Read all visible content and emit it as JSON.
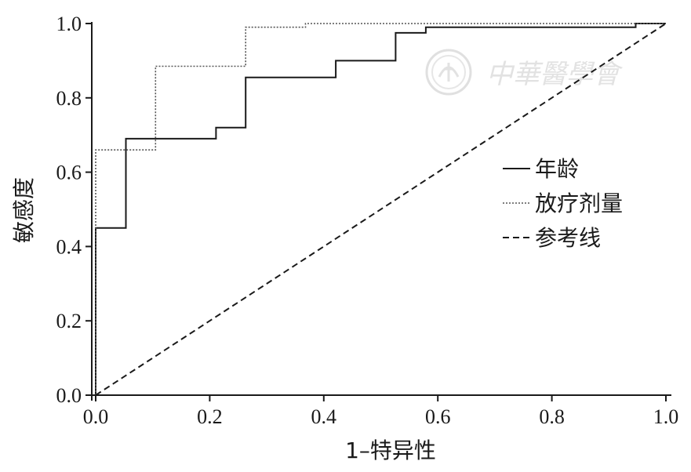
{
  "chart_data": {
    "type": "line",
    "title": "",
    "xlabel": "1–特异性",
    "ylabel": "敏感度",
    "xlim": [
      0,
      1
    ],
    "ylim": [
      0,
      1
    ],
    "x_ticks": [
      "0.0",
      "0.2",
      "0.4",
      "0.6",
      "0.8",
      "1.0"
    ],
    "y_ticks": [
      "0.0",
      "0.2",
      "0.4",
      "0.6",
      "0.8",
      "1.0"
    ],
    "grid": false,
    "legend_position": "right",
    "series": [
      {
        "name": "年龄",
        "style": "solid",
        "color": "#1a1a1a",
        "points": [
          [
            0,
            0
          ],
          [
            0,
            0.45
          ],
          [
            0.053,
            0.45
          ],
          [
            0.053,
            0.69
          ],
          [
            0.211,
            0.69
          ],
          [
            0.211,
            0.72
          ],
          [
            0.263,
            0.72
          ],
          [
            0.263,
            0.855
          ],
          [
            0.421,
            0.855
          ],
          [
            0.421,
            0.9
          ],
          [
            0.526,
            0.9
          ],
          [
            0.526,
            0.975
          ],
          [
            0.579,
            0.975
          ],
          [
            0.579,
            0.99
          ],
          [
            0.947,
            0.99
          ],
          [
            0.947,
            1.0
          ],
          [
            1.0,
            1.0
          ]
        ]
      },
      {
        "name": "放疗剂量",
        "style": "dotted",
        "color": "#555555",
        "points": [
          [
            0,
            0
          ],
          [
            0,
            0.66
          ],
          [
            0.105,
            0.66
          ],
          [
            0.105,
            0.885
          ],
          [
            0.263,
            0.885
          ],
          [
            0.263,
            0.99
          ],
          [
            0.368,
            0.99
          ],
          [
            0.368,
            1.0
          ],
          [
            1.0,
            1.0
          ]
        ]
      },
      {
        "name": "参考线",
        "style": "dashed",
        "color": "#1a1a1a",
        "points": [
          [
            0,
            0
          ],
          [
            1,
            1
          ]
        ]
      }
    ]
  },
  "watermark": {
    "text": "中華醫學會"
  }
}
